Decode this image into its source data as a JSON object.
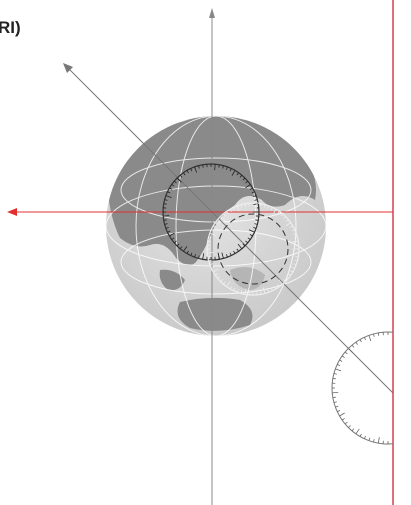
{
  "header": {
    "title": "RI)"
  }
}
